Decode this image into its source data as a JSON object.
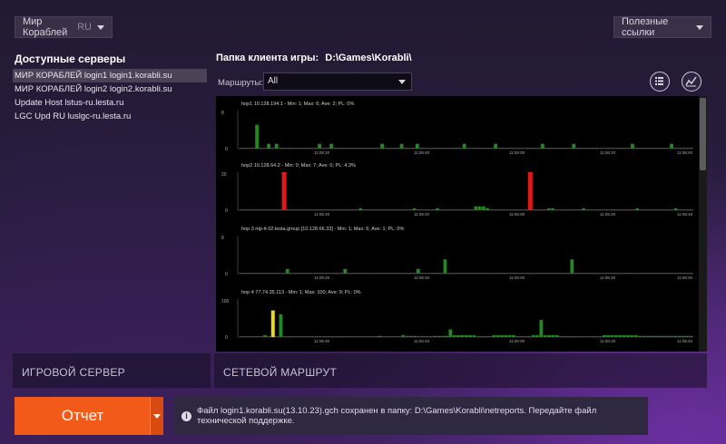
{
  "header": {
    "server_select": {
      "value": "Мир Кораблей",
      "region": "RU"
    },
    "links_select": {
      "value": "Полезные ссылки"
    }
  },
  "servers": {
    "title": "Доступные серверы",
    "items": [
      {
        "label": "МИР КОРАБЛЕЙ login1  login1.korabli.su",
        "selected": true
      },
      {
        "label": "МИР КОРАБЛЕЙ login2  login2.korabli.su",
        "selected": false
      },
      {
        "label": "Update Host  lstus-ru.lesta.ru",
        "selected": false
      },
      {
        "label": "LGC Upd RU  luslgc-ru.lesta.ru",
        "selected": false
      }
    ]
  },
  "client_folder": {
    "label": "Папка клиента игры:",
    "path": "D:\\Games\\Korabli\\"
  },
  "routes": {
    "label": "Маршруты:",
    "value": "All"
  },
  "charts": [
    {
      "title": "hop1  10.128.194.1 - Min: 1; Max: 6; Ave: 2; PL: 0%",
      "ymax": 8,
      "values": [
        0,
        0,
        0,
        0,
        5,
        0,
        0,
        1,
        0,
        1,
        0,
        0,
        0,
        0,
        0,
        0,
        0,
        0,
        0,
        0,
        1,
        0,
        0,
        1,
        0,
        0,
        0,
        0,
        0,
        0,
        0,
        0,
        0,
        0,
        0,
        0,
        1,
        0,
        0,
        0,
        0,
        1,
        0,
        0,
        0,
        1,
        0,
        0,
        0,
        0,
        0,
        0,
        0,
        0,
        0,
        0,
        0,
        1,
        0,
        0,
        0,
        0,
        0,
        0,
        0,
        1,
        0,
        0,
        0,
        0,
        0,
        0,
        0,
        0,
        0,
        0,
        0,
        1,
        0,
        0,
        0,
        0,
        0,
        0,
        0,
        1,
        0,
        0,
        0,
        0,
        0,
        0,
        0,
        0,
        0,
        0,
        0,
        0,
        0,
        0,
        1,
        0,
        0,
        0,
        0,
        0,
        0,
        0,
        0,
        0,
        1,
        0,
        0,
        0,
        0,
        0
      ]
    },
    {
      "title": "hop2  10.128.64.2 - Min: 0; Max: 7; Ave: 0; PL: 4.3%",
      "ymax": 20,
      "values": [
        0,
        0,
        0,
        0,
        0,
        0,
        0,
        0,
        0,
        0,
        0,
        0,
        0,
        0,
        0,
        0,
        0,
        0,
        0,
        0,
        0,
        0,
        0,
        0,
        0,
        0,
        0,
        0,
        0,
        0,
        0,
        1,
        0,
        0,
        0,
        0,
        0,
        0,
        0,
        0,
        0,
        0,
        0,
        0,
        0,
        1,
        0,
        0,
        0,
        0,
        0,
        1,
        0,
        0,
        0,
        0,
        0,
        0,
        0,
        0,
        0,
        2,
        2,
        2,
        1,
        0,
        0,
        0,
        0,
        0,
        0,
        0,
        0,
        0,
        0,
        0,
        0,
        0,
        0,
        0,
        1,
        1,
        0,
        0,
        0,
        0,
        0,
        0,
        0,
        1,
        0,
        0,
        0,
        0,
        0,
        0,
        0,
        0,
        0,
        0,
        0,
        0,
        0,
        1,
        0,
        0,
        0,
        0,
        0,
        0,
        0,
        0,
        0,
        1,
        0,
        0,
        0,
        0
      ],
      "loss": [
        {
          "index": 11,
          "value": 20
        },
        {
          "index": 75,
          "value": 20
        }
      ]
    },
    {
      "title": "hop 3  ntp-it-02.lesta.group [10.128.66.33] - Min: 1; Max: 6; Ave: 1; PL: 0%",
      "ymax": 8,
      "values": [
        0,
        0,
        0,
        0,
        0,
        0,
        0,
        0,
        0,
        0,
        0,
        0,
        1,
        0,
        0,
        0,
        0,
        0,
        0,
        0,
        0,
        0,
        0,
        0,
        0,
        0,
        0,
        1,
        0,
        0,
        0,
        0,
        0,
        0,
        0,
        0,
        0,
        0,
        0,
        0,
        0,
        0,
        0,
        0,
        0,
        0,
        1,
        0,
        0,
        0,
        0,
        0,
        0,
        3,
        0,
        0,
        0,
        0,
        0,
        0,
        0,
        0,
        0,
        0,
        0,
        0,
        0,
        0,
        0,
        0,
        0,
        0,
        0,
        0,
        0,
        0,
        0,
        0,
        0,
        0,
        0,
        0,
        0,
        0,
        0,
        0,
        3,
        0,
        0,
        0,
        0,
        0,
        0,
        0,
        0,
        0,
        0,
        0,
        0,
        0,
        0,
        0,
        0,
        0,
        0,
        0,
        0,
        0,
        0,
        0,
        0,
        0,
        0,
        0,
        0,
        0,
        0,
        0
      ]
    },
    {
      "title": "hop 4  77.74.35.113 - Min: 1; Max: 100; Ave: 9; PL: 0%",
      "ymax": 100,
      "values": [
        0,
        0,
        0,
        0,
        0,
        0,
        5,
        0,
        0,
        0,
        60,
        0,
        0,
        0,
        0,
        0,
        0,
        0,
        0,
        0,
        0,
        0,
        0,
        0,
        0,
        0,
        0,
        0,
        0,
        0,
        0,
        0,
        0,
        0,
        0,
        3,
        0,
        0,
        0,
        0,
        0,
        5,
        3,
        3,
        3,
        2,
        2,
        2,
        2,
        3,
        3,
        3,
        3,
        20,
        5,
        5,
        5,
        5,
        5,
        5,
        2,
        2,
        2,
        2,
        5,
        5,
        5,
        5,
        5,
        5,
        2,
        2,
        2,
        2,
        5,
        5,
        45,
        5,
        5,
        5,
        5,
        2,
        2,
        2,
        2,
        2,
        1,
        0,
        0,
        0,
        0,
        0,
        5,
        5,
        5,
        5,
        5,
        5,
        5,
        5,
        5,
        3,
        3,
        3,
        3,
        3,
        3,
        3,
        3,
        3,
        3,
        3,
        3,
        3,
        3
      ],
      "warn": [
        {
          "index": 8,
          "value": 70
        }
      ]
    }
  ],
  "time_ticks": [
    "11:05:20",
    "11:05:40",
    "11:06:00",
    "11:06:20",
    "11:06:40"
  ],
  "game_server_label": "ИГРОВОЙ СЕРВЕР",
  "net_route_label": "СЕТЕВОЙ МАРШРУТ",
  "report_button": "Отчет",
  "notice": "Файл login1.korabli.su(13.10.23).gch сохранен в папку: D:\\Games\\Korabli\\netreports. Передайте файл технической поддержке.",
  "colors": {
    "bar": "#1f8a1f",
    "loss": "#e01818",
    "warn": "#e8d820",
    "accent": "#f25a1a"
  }
}
